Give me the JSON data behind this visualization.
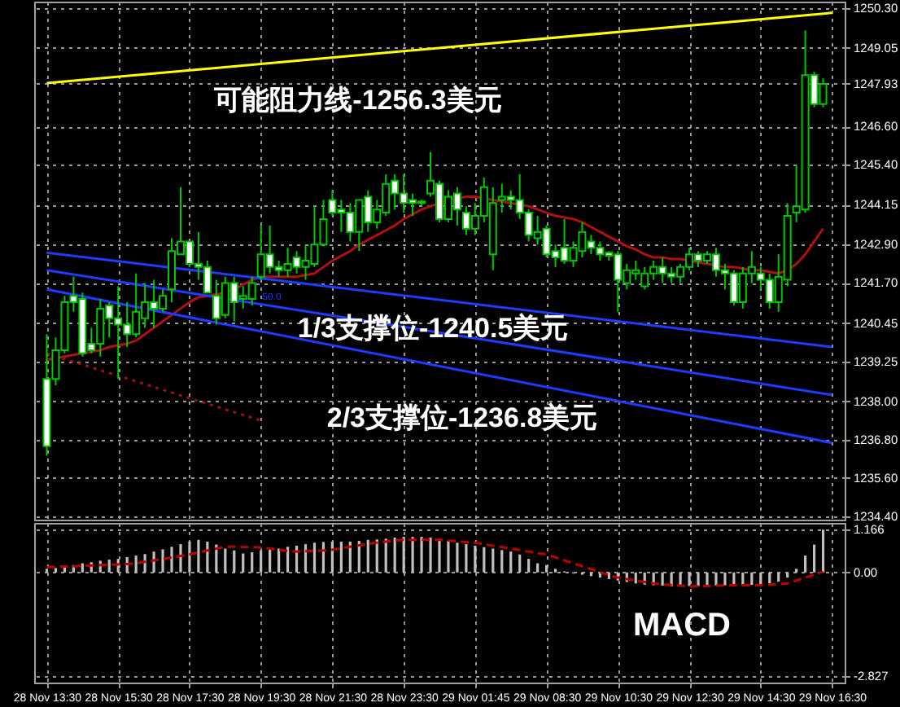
{
  "chart_data": [
    {
      "type": "candlestick",
      "categories": [
        "28 Nov 13:30",
        null,
        null,
        null,
        null,
        null,
        null,
        null,
        "28 Nov 15:30",
        null,
        null,
        null,
        null,
        null,
        null,
        null,
        "28 Nov 17:30",
        null,
        null,
        null,
        null,
        null,
        null,
        null,
        "28 Nov 19:30",
        null,
        null,
        null,
        null,
        null,
        null,
        null,
        "28 Nov 21:30",
        null,
        null,
        null,
        null,
        null,
        null,
        null,
        "28 Nov 23:30",
        null,
        null,
        null,
        null,
        null,
        null,
        null,
        "29 Nov 01:45",
        null,
        null,
        null,
        null,
        null,
        null,
        null,
        "29 Nov 08:30",
        null,
        null,
        null,
        null,
        null,
        null,
        null,
        "29 Nov 10:30",
        null,
        null,
        null,
        null,
        null,
        null,
        null,
        "29 Nov 12:30",
        null,
        null,
        null,
        null,
        null,
        null,
        null,
        "29 Nov 14:30",
        null,
        null,
        null,
        null,
        null,
        null,
        null,
        "29 Nov 16:30"
      ],
      "ohlc": [
        [
          1238.7,
          1240.1,
          1236.3,
          1236.6
        ],
        [
          1238.7,
          1240.0,
          1238.5,
          1239.6
        ],
        [
          1239.6,
          1241.3,
          1239.5,
          1241.1
        ],
        [
          1241.3,
          1241.9,
          1240.8,
          1241.1
        ],
        [
          1241.2,
          1241.4,
          1239.4,
          1239.5
        ],
        [
          1239.8,
          1240.3,
          1239.5,
          1239.6
        ],
        [
          1239.8,
          1241.2,
          1239.4,
          1240.9
        ],
        [
          1241.0,
          1241.1,
          1240.0,
          1240.6
        ],
        [
          1240.6,
          1241.6,
          1238.7,
          1240.4
        ],
        [
          1240.4,
          1241.1,
          1239.7,
          1240.1
        ],
        [
          1240.1,
          1242.0,
          1240.0,
          1240.8
        ],
        [
          1240.6,
          1241.7,
          1240.3,
          1241.1
        ],
        [
          1241.1,
          1241.8,
          1240.3,
          1240.9
        ],
        [
          1240.9,
          1241.5,
          1240.8,
          1241.3
        ],
        [
          1241.5,
          1243.1,
          1241.1,
          1242.7
        ],
        [
          1242.6,
          1244.7,
          1242.6,
          1243.0
        ],
        [
          1243.0,
          1243.0,
          1242.2,
          1242.3
        ],
        [
          1242.3,
          1243.3,
          1241.8,
          1242.2
        ],
        [
          1242.2,
          1242.4,
          1241.4,
          1241.4
        ],
        [
          1241.3,
          1241.8,
          1240.4,
          1240.6
        ],
        [
          1240.7,
          1241.9,
          1240.6,
          1241.7
        ],
        [
          1241.7,
          1241.9,
          1240.5,
          1241.1
        ],
        [
          1241.2,
          1241.6,
          1240.9,
          1241.3
        ],
        [
          1241.2,
          1241.9,
          1241.0,
          1241.7
        ],
        [
          1241.9,
          1243.5,
          1241.8,
          1242.6
        ],
        [
          1242.6,
          1243.5,
          1242.0,
          1242.2
        ],
        [
          1242.2,
          1242.4,
          1241.9,
          1242.1
        ],
        [
          1242.1,
          1242.8,
          1241.9,
          1242.3
        ],
        [
          1242.5,
          1242.7,
          1242.0,
          1242.2
        ],
        [
          1242.2,
          1242.9,
          1241.8,
          1242.4
        ],
        [
          1242.3,
          1244.1,
          1242.2,
          1242.9
        ],
        [
          1242.9,
          1244.3,
          1242.9,
          1243.7
        ],
        [
          1244.3,
          1244.6,
          1243.8,
          1243.9
        ],
        [
          1244.0,
          1244.3,
          1243.3,
          1243.9
        ],
        [
          1243.9,
          1244.2,
          1243.0,
          1243.3
        ],
        [
          1243.3,
          1244.3,
          1242.7,
          1244.3
        ],
        [
          1244.4,
          1244.6,
          1243.3,
          1243.6
        ],
        [
          1243.6,
          1244.3,
          1243.4,
          1244.0
        ],
        [
          1243.9,
          1245.1,
          1243.8,
          1244.8
        ],
        [
          1244.9,
          1245.1,
          1244.0,
          1244.5
        ],
        [
          1244.5,
          1245.1,
          1243.9,
          1244.2
        ],
        [
          1244.3,
          1244.5,
          1243.8,
          1244.2
        ],
        [
          1244.25,
          1244.3,
          1244.1,
          1244.2
        ],
        [
          1244.5,
          1245.8,
          1244.4,
          1244.9
        ],
        [
          1244.8,
          1244.9,
          1243.6,
          1243.7
        ],
        [
          1243.7,
          1244.6,
          1243.6,
          1244.4
        ],
        [
          1244.5,
          1244.7,
          1243.5,
          1244.0
        ],
        [
          1243.9,
          1244.1,
          1243.2,
          1243.4
        ],
        [
          1243.4,
          1244.2,
          1243.2,
          1243.8
        ],
        [
          1243.8,
          1245.0,
          1243.6,
          1244.7
        ],
        [
          1242.6,
          1244.7,
          1242.1,
          1244.2
        ],
        [
          1244.3,
          1244.8,
          1243.9,
          1244.4
        ],
        [
          1244.4,
          1244.6,
          1244.0,
          1244.3
        ],
        [
          1244.3,
          1245.1,
          1243.7,
          1243.9
        ],
        [
          1243.9,
          1244.0,
          1243.0,
          1243.2
        ],
        [
          1243.1,
          1243.8,
          1242.9,
          1243.3
        ],
        [
          1243.4,
          1243.5,
          1242.5,
          1242.6
        ],
        [
          1242.7,
          1242.9,
          1242.2,
          1242.5
        ],
        [
          1242.8,
          1243.7,
          1242.3,
          1242.4
        ],
        [
          1242.4,
          1243.0,
          1242.2,
          1242.8
        ],
        [
          1242.7,
          1243.6,
          1242.5,
          1243.3
        ],
        [
          1243.0,
          1243.2,
          1242.6,
          1242.8
        ],
        [
          1242.8,
          1243.0,
          1242.4,
          1242.6
        ],
        [
          1242.65,
          1242.7,
          1242.4,
          1242.55
        ],
        [
          1242.6,
          1242.7,
          1240.8,
          1241.8
        ],
        [
          1241.7,
          1242.3,
          1241.5,
          1242.1
        ],
        [
          1242.0,
          1242.4,
          1241.8,
          1242.1
        ],
        [
          1241.6,
          1242.2,
          1241.5,
          1242.0
        ],
        [
          1242.0,
          1242.4,
          1241.8,
          1242.2
        ],
        [
          1242.2,
          1242.5,
          1241.7,
          1242.0
        ],
        [
          1242.0,
          1242.2,
          1241.7,
          1241.9
        ],
        [
          1241.9,
          1242.3,
          1241.7,
          1242.2
        ],
        [
          1242.2,
          1242.8,
          1242.1,
          1242.6
        ],
        [
          1242.6,
          1242.7,
          1242.2,
          1242.4
        ],
        [
          1242.4,
          1242.7,
          1242.3,
          1242.6
        ],
        [
          1242.6,
          1242.8,
          1241.9,
          1242.1
        ],
        [
          1242.1,
          1242.3,
          1241.5,
          1242.0
        ],
        [
          1242.0,
          1242.1,
          1241.0,
          1241.1
        ],
        [
          1241.1,
          1242.2,
          1240.9,
          1242.0
        ],
        [
          1242.0,
          1242.7,
          1241.7,
          1242.2
        ],
        [
          1242.0,
          1242.2,
          1241.5,
          1241.8
        ],
        [
          1241.8,
          1242.0,
          1240.9,
          1241.1
        ],
        [
          1241.1,
          1242.6,
          1240.8,
          1241.9
        ],
        [
          1241.8,
          1244.2,
          1241.6,
          1243.8
        ],
        [
          1243.9,
          1245.4,
          1243.6,
          1244.1
        ],
        [
          1244.0,
          1249.6,
          1243.9,
          1248.2
        ],
        [
          1248.2,
          1248.3,
          1247.2,
          1247.3
        ],
        [
          1247.3,
          1248.1,
          1247.2,
          1247.93
        ],
        null
      ],
      "series": [
        {
          "type": "line",
          "color": "#b01010",
          "values": [
            1239.3,
            1239.35,
            1239.4,
            1239.45,
            1239.5,
            1239.55,
            1239.6,
            1239.7,
            1239.75,
            1239.8,
            1239.9,
            1240.1,
            1240.3,
            1240.5,
            1240.7,
            1240.9,
            1241.1,
            1241.25,
            1241.3,
            1241.35,
            1241.4,
            1241.5,
            1241.65,
            1241.8,
            1241.9,
            1241.9,
            1241.9,
            1241.9,
            1241.9,
            1241.95,
            1242.0,
            1242.2,
            1242.4,
            1242.55,
            1242.7,
            1242.9,
            1243.05,
            1243.2,
            1243.35,
            1243.5,
            1243.7,
            1243.85,
            1244.0,
            1244.1,
            1244.2,
            1244.3,
            1244.35,
            1244.4,
            1244.4,
            1244.35,
            1244.3,
            1244.25,
            1244.2,
            1244.15,
            1244.1,
            1244.0,
            1243.9,
            1243.8,
            1243.75,
            1243.7,
            1243.6,
            1243.45,
            1243.3,
            1243.15,
            1243.0,
            1242.85,
            1242.75,
            1242.6,
            1242.5,
            1242.5,
            1242.45,
            1242.45,
            1242.4,
            1242.35,
            1242.3,
            1242.25,
            1242.2,
            1242.2,
            1242.15,
            1242.1,
            1242.1,
            1242.05,
            1242.0,
            1242.1,
            1242.3,
            1242.6,
            1243.0,
            1243.4,
            null
          ]
        },
        {
          "type": "line",
          "color": "#ffff00",
          "x": [
            "28 Nov 13:30",
            "29 Nov 16:30"
          ],
          "values": [
            1247.95,
            1250.15
          ]
        },
        {
          "type": "line",
          "color": "#1e3cff",
          "x": [
            "28 Nov 13:30",
            "29 Nov 16:30"
          ],
          "values": [
            1242.65,
            1239.7
          ]
        },
        {
          "type": "line",
          "color": "#1e3cff",
          "x": [
            "28 Nov 13:30",
            "29 Nov 16:30"
          ],
          "values": [
            1242.1,
            1238.2
          ]
        },
        {
          "type": "line",
          "color": "#1e3cff",
          "x": [
            "28 Nov 13:30",
            "29 Nov 16:30"
          ],
          "values": [
            1241.5,
            1236.7
          ]
        },
        {
          "type": "line",
          "color": "#a01010",
          "line_style": "dotted",
          "x": [
            "28 Nov 13:30",
            "28 Nov 19:30"
          ],
          "values": [
            1239.5,
            1237.4
          ]
        }
      ],
      "ylim": [
        1234.3,
        1250.5
      ],
      "yticks": [
        {
          "value": 1250.3,
          "label": "1250.30"
        },
        {
          "value": 1249.05,
          "label": "1249.05"
        },
        1247.93,
        {
          "value": 1246.6,
          "label": "1246.60"
        },
        {
          "value": 1245.4,
          "label": "1245.40"
        },
        1244.15,
        {
          "value": 1242.9,
          "label": "1242.90"
        },
        {
          "value": 1241.7,
          "label": "1241.70"
        },
        1240.45,
        {
          "value": 1239.25,
          "label": "1239.25"
        },
        {
          "value": 1238,
          "label": "1238.00"
        },
        {
          "value": 1236.8,
          "label": "1236.80"
        },
        {
          "value": 1235.6,
          "label": "1235.60"
        },
        {
          "value": 1234.4,
          "label": "1234.40"
        }
      ],
      "annotations": [
        "可能阻力线-1256.3美元",
        "1/3支撑位-1240.5美元",
        "2/3支撑位-1236.8美元",
        "50.0"
      ],
      "grid": true,
      "marker": "none",
      "tick_labels": "y"
    },
    {
      "type": "bar",
      "categories": [
        "28 Nov 13:30",
        null,
        null,
        null,
        null,
        null,
        null,
        null,
        "28 Nov 15:30",
        null,
        null,
        null,
        null,
        null,
        null,
        null,
        "28 Nov 17:30",
        null,
        null,
        null,
        null,
        null,
        null,
        null,
        "28 Nov 19:30",
        null,
        null,
        null,
        null,
        null,
        null,
        null,
        "28 Nov 21:30",
        null,
        null,
        null,
        null,
        null,
        null,
        null,
        "28 Nov 23:30",
        null,
        null,
        null,
        null,
        null,
        null,
        null,
        "29 Nov 01:45",
        null,
        null,
        null,
        null,
        null,
        null,
        null,
        "29 Nov 08:30",
        null,
        null,
        null,
        null,
        null,
        null,
        null,
        "29 Nov 10:30",
        null,
        null,
        null,
        null,
        null,
        null,
        null,
        "29 Nov 12:30",
        null,
        null,
        null,
        null,
        null,
        null,
        null,
        "29 Nov 14:30",
        null,
        null,
        null,
        null,
        null,
        null,
        null,
        "29 Nov 16:30"
      ],
      "series": [
        {
          "type": "bar",
          "color": "#c0c0c0",
          "values": [
            0.1,
            0.12,
            0.15,
            0.2,
            0.25,
            0.28,
            0.32,
            0.35,
            0.37,
            0.42,
            0.46,
            0.5,
            0.57,
            0.63,
            0.7,
            0.77,
            0.84,
            0.89,
            0.84,
            0.76,
            0.65,
            0.6,
            0.52,
            0.55,
            0.6,
            0.62,
            0.65,
            0.7,
            0.73,
            0.77,
            0.81,
            0.83,
            0.84,
            0.84,
            0.84,
            0.86,
            0.89,
            0.9,
            0.92,
            0.95,
            0.97,
            0.97,
            0.97,
            0.95,
            0.92,
            0.86,
            0.81,
            0.77,
            0.73,
            0.69,
            0.65,
            0.61,
            0.57,
            0.49,
            0.37,
            0.25,
            0.2,
            0.1,
            0.03,
            -0.03,
            -0.06,
            -0.1,
            -0.14,
            -0.18,
            -0.22,
            -0.26,
            -0.3,
            -0.33,
            -0.35,
            -0.36,
            -0.38,
            -0.38,
            -0.37,
            -0.37,
            -0.36,
            -0.36,
            -0.35,
            -0.35,
            -0.34,
            -0.34,
            -0.33,
            -0.3,
            -0.25,
            -0.14,
            0.1,
            0.46,
            0.76,
            1.166,
            null
          ]
        },
        {
          "type": "line",
          "color": "#c00000",
          "line_style": "dashed",
          "values": [
            0.14,
            0.15,
            0.16,
            0.17,
            0.18,
            0.19,
            0.2,
            0.21,
            0.22,
            0.23,
            0.25,
            0.29,
            0.33,
            0.37,
            0.41,
            0.45,
            0.49,
            0.55,
            0.6,
            0.65,
            0.7,
            0.7,
            0.69,
            0.69,
            0.68,
            0.65,
            0.62,
            0.59,
            0.57,
            0.58,
            0.59,
            0.6,
            0.62,
            0.66,
            0.7,
            0.74,
            0.78,
            0.81,
            0.84,
            0.87,
            0.89,
            0.89,
            0.89,
            0.89,
            0.89,
            0.87,
            0.85,
            0.83,
            0.81,
            0.77,
            0.73,
            0.69,
            0.65,
            0.61,
            0.57,
            0.53,
            0.49,
            0.41,
            0.33,
            0.25,
            0.17,
            0.09,
            0.01,
            -0.07,
            -0.14,
            -0.18,
            -0.22,
            -0.26,
            -0.3,
            -0.32,
            -0.34,
            -0.36,
            -0.38,
            -0.37,
            -0.37,
            -0.36,
            -0.35,
            -0.35,
            -0.35,
            -0.35,
            -0.35,
            -0.33,
            -0.32,
            -0.3,
            -0.22,
            -0.14,
            -0.06,
            0.02,
            null
          ]
        }
      ],
      "ylim": [
        -3.0,
        1.35
      ],
      "yticks": [
        1.166,
        {
          "value": 0,
          "label": "0.00"
        },
        -2.827
      ],
      "annotations": [
        "MACD"
      ],
      "grid": true,
      "marker": "none"
    }
  ]
}
